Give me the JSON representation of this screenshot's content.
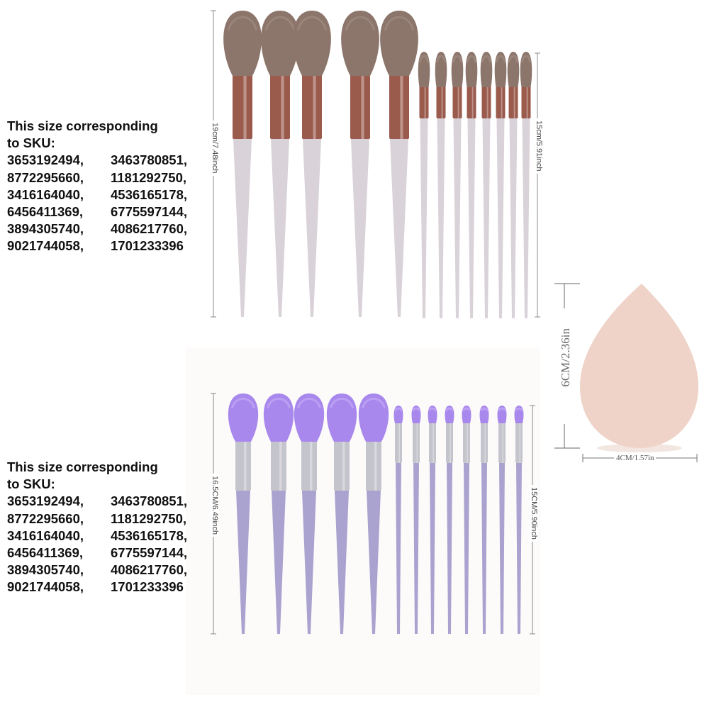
{
  "sections": [
    {
      "heading_line1": "This size corresponding",
      "heading_line2": "to SKU:",
      "sku_rows": [
        [
          "3653192494,",
          "3463780851,"
        ],
        [
          "8772295660,",
          "1181292750,"
        ],
        [
          "3416164040,",
          "4536165178,"
        ],
        [
          "6456411369,",
          "6775597144,"
        ],
        [
          "3894305740,",
          "4086217760,"
        ],
        [
          "9021744058,",
          "1701233396"
        ]
      ],
      "large_brush_length": "19cm/7.48inch",
      "small_brush_length": "15cm/5.91inch",
      "large_brush_count": 5,
      "small_brush_count": 8,
      "colors": {
        "bristle": "#8c756b",
        "bristle_tip": "#a08b80",
        "ferrule": "#9a5a4c",
        "handle": "#d9d2d8"
      }
    },
    {
      "heading_line1": "This size corresponding",
      "heading_line2": "to SKU:",
      "sku_rows": [
        [
          "3653192494,",
          "3463780851,"
        ],
        [
          "8772295660,",
          "1181292750,"
        ],
        [
          "3416164040,",
          "4536165178,"
        ],
        [
          "6456411369,",
          "6775597144,"
        ],
        [
          "3894305740,",
          "4086217760,"
        ],
        [
          "9021744058,",
          "1701233396"
        ]
      ],
      "large_brush_length": "16.5CM/6.49inch",
      "small_brush_length": "15CM/5.90inch",
      "large_brush_count": 5,
      "small_brush_count": 8,
      "colors": {
        "bristle": "#a888ec",
        "bristle_tip": "#c3aaf6",
        "ferrule": "#c4c4cc",
        "handle": "#aaa2cf"
      }
    }
  ],
  "sponge": {
    "height_label": "6CM/2.36in",
    "width_label": "4CM/1.57in",
    "color": "#efd3c8"
  }
}
